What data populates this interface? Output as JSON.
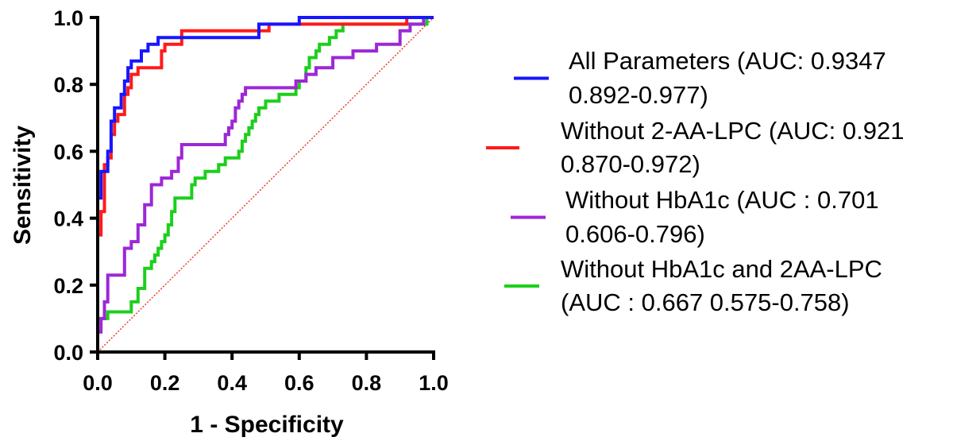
{
  "chart_data": {
    "type": "line",
    "xlabel": "1 - Specificity",
    "ylabel": "Sensitivity",
    "xlim": [
      0,
      1
    ],
    "ylim": [
      0,
      1
    ],
    "xticks": [
      "0.0",
      "0.2",
      "0.4",
      "0.6",
      "0.8",
      "1.0"
    ],
    "yticks": [
      "0.0",
      "0.2",
      "0.4",
      "0.6",
      "0.8",
      "1.0"
    ],
    "grid": false,
    "legend_position": "right",
    "reference_line": {
      "points": [
        [
          0,
          0
        ],
        [
          1,
          1
        ]
      ],
      "color": "#e8402a",
      "style": "dotted"
    },
    "series": [
      {
        "name": "All Parameters (AUC: 0.9347",
        "name_line2": "0.892-0.977)",
        "color": "#1616ff",
        "points": [
          [
            0,
            0
          ],
          [
            0,
            0.46
          ],
          [
            0.01,
            0.46
          ],
          [
            0.01,
            0.54
          ],
          [
            0.03,
            0.54
          ],
          [
            0.03,
            0.6
          ],
          [
            0.04,
            0.6
          ],
          [
            0.04,
            0.69
          ],
          [
            0.05,
            0.69
          ],
          [
            0.05,
            0.73
          ],
          [
            0.07,
            0.73
          ],
          [
            0.07,
            0.77
          ],
          [
            0.08,
            0.77
          ],
          [
            0.08,
            0.81
          ],
          [
            0.09,
            0.81
          ],
          [
            0.09,
            0.85
          ],
          [
            0.1,
            0.85
          ],
          [
            0.1,
            0.87
          ],
          [
            0.13,
            0.87
          ],
          [
            0.13,
            0.9
          ],
          [
            0.15,
            0.9
          ],
          [
            0.15,
            0.92
          ],
          [
            0.18,
            0.92
          ],
          [
            0.18,
            0.94
          ],
          [
            0.26,
            0.94
          ],
          [
            0.26,
            0.94
          ],
          [
            0.45,
            0.94
          ],
          [
            0.45,
            0.94
          ],
          [
            0.48,
            0.94
          ],
          [
            0.48,
            0.98
          ],
          [
            0.6,
            0.98
          ],
          [
            0.6,
            1.0
          ],
          [
            1.0,
            1.0
          ]
        ]
      },
      {
        "name": "Without 2-AA-LPC (AUC: 0.921",
        "name_line2": "0.870-0.972)",
        "color": "#ff1a1a",
        "points": [
          [
            0,
            0
          ],
          [
            0,
            0.35
          ],
          [
            0.01,
            0.35
          ],
          [
            0.01,
            0.42
          ],
          [
            0.02,
            0.42
          ],
          [
            0.02,
            0.56
          ],
          [
            0.03,
            0.56
          ],
          [
            0.03,
            0.58
          ],
          [
            0.04,
            0.58
          ],
          [
            0.04,
            0.65
          ],
          [
            0.05,
            0.65
          ],
          [
            0.05,
            0.69
          ],
          [
            0.06,
            0.69
          ],
          [
            0.06,
            0.71
          ],
          [
            0.08,
            0.71
          ],
          [
            0.08,
            0.77
          ],
          [
            0.09,
            0.77
          ],
          [
            0.09,
            0.79
          ],
          [
            0.1,
            0.79
          ],
          [
            0.1,
            0.83
          ],
          [
            0.12,
            0.83
          ],
          [
            0.12,
            0.85
          ],
          [
            0.14,
            0.85
          ],
          [
            0.14,
            0.85
          ],
          [
            0.19,
            0.85
          ],
          [
            0.19,
            0.9
          ],
          [
            0.2,
            0.9
          ],
          [
            0.2,
            0.92
          ],
          [
            0.25,
            0.92
          ],
          [
            0.25,
            0.96
          ],
          [
            0.51,
            0.96
          ],
          [
            0.51,
            0.98
          ],
          [
            0.92,
            0.98
          ],
          [
            0.92,
            1.0
          ],
          [
            1.0,
            1.0
          ]
        ]
      },
      {
        "name": "Without HbA1c (AUC : 0.701",
        "name_line2": "0.606-0.796)",
        "color": "#9d27d6",
        "points": [
          [
            0,
            0
          ],
          [
            0,
            0.06
          ],
          [
            0.01,
            0.06
          ],
          [
            0.01,
            0.1
          ],
          [
            0.02,
            0.1
          ],
          [
            0.02,
            0.15
          ],
          [
            0.03,
            0.15
          ],
          [
            0.03,
            0.23
          ],
          [
            0.08,
            0.23
          ],
          [
            0.08,
            0.31
          ],
          [
            0.1,
            0.31
          ],
          [
            0.1,
            0.33
          ],
          [
            0.12,
            0.33
          ],
          [
            0.12,
            0.38
          ],
          [
            0.14,
            0.38
          ],
          [
            0.14,
            0.44
          ],
          [
            0.16,
            0.44
          ],
          [
            0.16,
            0.5
          ],
          [
            0.19,
            0.5
          ],
          [
            0.19,
            0.52
          ],
          [
            0.22,
            0.52
          ],
          [
            0.22,
            0.54
          ],
          [
            0.24,
            0.54
          ],
          [
            0.24,
            0.58
          ],
          [
            0.25,
            0.58
          ],
          [
            0.25,
            0.62
          ],
          [
            0.38,
            0.62
          ],
          [
            0.38,
            0.65
          ],
          [
            0.39,
            0.65
          ],
          [
            0.39,
            0.67
          ],
          [
            0.4,
            0.67
          ],
          [
            0.4,
            0.69
          ],
          [
            0.41,
            0.69
          ],
          [
            0.41,
            0.73
          ],
          [
            0.42,
            0.73
          ],
          [
            0.42,
            0.75
          ],
          [
            0.43,
            0.75
          ],
          [
            0.43,
            0.77
          ],
          [
            0.44,
            0.77
          ],
          [
            0.44,
            0.79
          ],
          [
            0.59,
            0.79
          ],
          [
            0.59,
            0.81
          ],
          [
            0.62,
            0.81
          ],
          [
            0.62,
            0.83
          ],
          [
            0.65,
            0.83
          ],
          [
            0.65,
            0.85
          ],
          [
            0.7,
            0.85
          ],
          [
            0.7,
            0.88
          ],
          [
            0.76,
            0.88
          ],
          [
            0.76,
            0.9
          ],
          [
            0.83,
            0.9
          ],
          [
            0.83,
            0.92
          ],
          [
            0.9,
            0.92
          ],
          [
            0.9,
            0.96
          ],
          [
            0.93,
            0.96
          ],
          [
            0.93,
            0.98
          ],
          [
            0.97,
            0.98
          ],
          [
            0.97,
            1.0
          ],
          [
            1.0,
            1.0
          ]
        ]
      },
      {
        "name": "Without HbA1c and 2AA-LPC",
        "name_line2": "(AUC : 0.667 0.575-0.758)",
        "color": "#1ccf1c",
        "points": [
          [
            0,
            0
          ],
          [
            0,
            0.1
          ],
          [
            0.03,
            0.1
          ],
          [
            0.03,
            0.12
          ],
          [
            0.1,
            0.12
          ],
          [
            0.1,
            0.15
          ],
          [
            0.12,
            0.15
          ],
          [
            0.12,
            0.19
          ],
          [
            0.14,
            0.19
          ],
          [
            0.14,
            0.25
          ],
          [
            0.16,
            0.25
          ],
          [
            0.16,
            0.27
          ],
          [
            0.17,
            0.27
          ],
          [
            0.17,
            0.29
          ],
          [
            0.18,
            0.29
          ],
          [
            0.18,
            0.31
          ],
          [
            0.19,
            0.31
          ],
          [
            0.19,
            0.33
          ],
          [
            0.2,
            0.33
          ],
          [
            0.2,
            0.35
          ],
          [
            0.21,
            0.35
          ],
          [
            0.21,
            0.38
          ],
          [
            0.22,
            0.38
          ],
          [
            0.22,
            0.42
          ],
          [
            0.23,
            0.42
          ],
          [
            0.23,
            0.46
          ],
          [
            0.28,
            0.46
          ],
          [
            0.28,
            0.5
          ],
          [
            0.29,
            0.5
          ],
          [
            0.29,
            0.52
          ],
          [
            0.32,
            0.52
          ],
          [
            0.32,
            0.54
          ],
          [
            0.36,
            0.54
          ],
          [
            0.36,
            0.56
          ],
          [
            0.38,
            0.56
          ],
          [
            0.38,
            0.58
          ],
          [
            0.42,
            0.58
          ],
          [
            0.42,
            0.6
          ],
          [
            0.43,
            0.6
          ],
          [
            0.43,
            0.63
          ],
          [
            0.44,
            0.63
          ],
          [
            0.44,
            0.65
          ],
          [
            0.45,
            0.65
          ],
          [
            0.45,
            0.67
          ],
          [
            0.46,
            0.67
          ],
          [
            0.46,
            0.69
          ],
          [
            0.47,
            0.69
          ],
          [
            0.47,
            0.71
          ],
          [
            0.48,
            0.71
          ],
          [
            0.48,
            0.73
          ],
          [
            0.5,
            0.73
          ],
          [
            0.5,
            0.75
          ],
          [
            0.54,
            0.75
          ],
          [
            0.54,
            0.77
          ],
          [
            0.59,
            0.77
          ],
          [
            0.59,
            0.79
          ],
          [
            0.6,
            0.79
          ],
          [
            0.6,
            0.81
          ],
          [
            0.62,
            0.81
          ],
          [
            0.62,
            0.85
          ],
          [
            0.63,
            0.85
          ],
          [
            0.63,
            0.88
          ],
          [
            0.65,
            0.88
          ],
          [
            0.65,
            0.9
          ],
          [
            0.66,
            0.9
          ],
          [
            0.66,
            0.92
          ],
          [
            0.69,
            0.92
          ],
          [
            0.69,
            0.94
          ],
          [
            0.71,
            0.94
          ],
          [
            0.71,
            0.96
          ],
          [
            0.73,
            0.96
          ],
          [
            0.73,
            0.98
          ],
          [
            0.98,
            0.98
          ],
          [
            0.98,
            1.0
          ],
          [
            1.0,
            1.0
          ]
        ]
      }
    ]
  }
}
